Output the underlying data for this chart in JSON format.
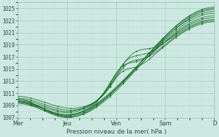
{
  "title": "",
  "xlabel": "Pression niveau de la mer( hPa )",
  "ylabel": "",
  "bg_color": "#cce8e0",
  "plot_bg_color": "#cce8e0",
  "grid_color_major": "#99ccbb",
  "grid_color_minor": "#bbddd5",
  "line_color": "#1a6b2a",
  "ylim": [
    1007,
    1026
  ],
  "yticks": [
    1007,
    1009,
    1011,
    1013,
    1015,
    1017,
    1019,
    1021,
    1023,
    1025
  ],
  "xtick_labels": [
    "Mer",
    "Jeu",
    "Ven",
    "Sam",
    "D"
  ],
  "x_days": [
    0,
    1,
    2,
    3,
    4
  ]
}
